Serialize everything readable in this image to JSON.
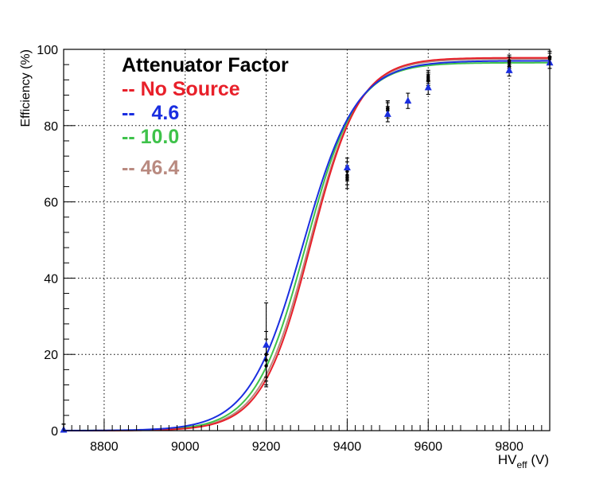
{
  "chart_data": {
    "type": "line",
    "title": "",
    "xlabel": "HV",
    "xlabel_sub": "eff",
    "xlabel_unit": " (V)",
    "ylabel": "Efficiency (%)",
    "xlim": [
      8700,
      9900
    ],
    "ylim": [
      0,
      100
    ],
    "xticks": [
      8800,
      9000,
      9200,
      9400,
      9600,
      9800
    ],
    "yticks": [
      0,
      20,
      40,
      60,
      80,
      100
    ],
    "grid": true,
    "legend": {
      "placement": "top-left",
      "title": "Attenuator Factor",
      "entries": [
        {
          "text": "-- No Source",
          "color": "#e8202a"
        },
        {
          "text": "--   4.6",
          "color": "#1a2ee0"
        },
        {
          "text": "-- 10.0",
          "color": "#3ec24a"
        },
        {
          "text": "-- 46.4",
          "color": "#b98a80"
        }
      ]
    },
    "series": [
      {
        "name": "No Source",
        "color": "#e8202a",
        "fit": {
          "plateau": 97.8,
          "midpoint": 9310,
          "width": 60
        },
        "x": [
          8700,
          9200,
          9400,
          9500,
          9600,
          9800,
          9900
        ],
        "y": [
          0.2,
          17.0,
          66.0,
          84.5,
          93.0,
          97.0,
          98.0
        ],
        "yerr": [
          1.5,
          5.0,
          2.5,
          2.0,
          1.5,
          1.5,
          1.5
        ]
      },
      {
        "name": "4.6",
        "color": "#1a2ee0",
        "fit": {
          "plateau": 97.0,
          "midpoint": 9290,
          "width": 66
        },
        "x": [
          8700,
          9200,
          9400,
          9500,
          9550,
          9600,
          9800,
          9900
        ],
        "y": [
          0.2,
          22.5,
          69.0,
          83.0,
          86.5,
          90.0,
          94.5,
          96.5
        ],
        "yerr": [
          1.5,
          11.0,
          2.5,
          2.0,
          2.0,
          1.8,
          1.5,
          1.5
        ]
      },
      {
        "name": "10.0",
        "color": "#3ec24a",
        "fit": {
          "plateau": 96.5,
          "midpoint": 9297,
          "width": 62
        },
        "x": [
          8700,
          9200,
          9400,
          9500,
          9600,
          9800,
          9900
        ],
        "y": [
          0.2,
          20.0,
          68.0,
          84.0,
          92.0,
          95.5,
          96.5
        ],
        "yerr": [
          1.5,
          6.0,
          2.5,
          2.0,
          1.5,
          1.5,
          1.5
        ]
      },
      {
        "name": "46.4",
        "color": "#b98a80",
        "fit": {
          "plateau": 97.5,
          "midpoint": 9306,
          "width": 61
        },
        "x": [
          8700,
          9200,
          9400,
          9500,
          9600,
          9800,
          9900
        ],
        "y": [
          0.2,
          18.5,
          67.0,
          84.5,
          92.5,
          96.5,
          97.5
        ],
        "yerr": [
          1.5,
          5.5,
          2.5,
          2.0,
          1.5,
          1.5,
          1.5
        ]
      }
    ]
  }
}
